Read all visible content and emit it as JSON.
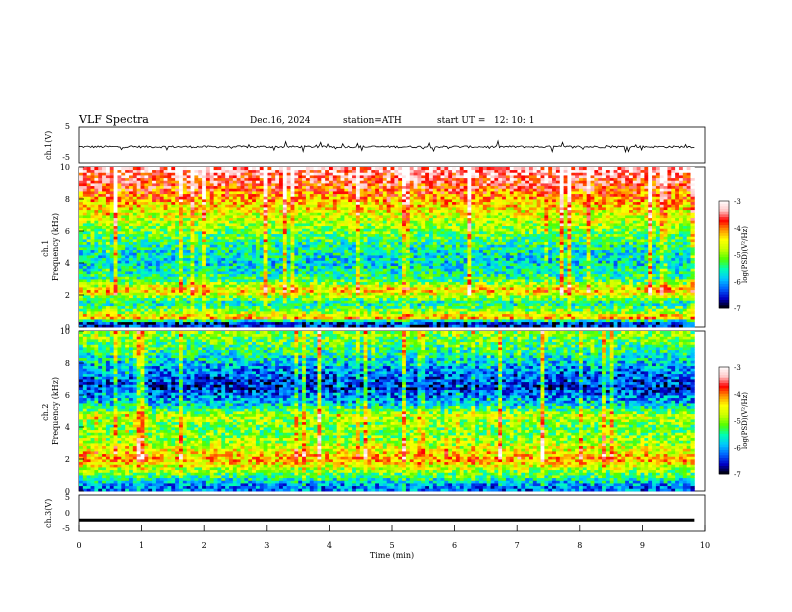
{
  "header": {
    "title": "VLF  Spectra",
    "date": "Dec.16, 2024",
    "station": "station=ATH",
    "start_label": "start  UT  =",
    "start_time": "12: 10: 1"
  },
  "chart_data": [
    {
      "type": "line",
      "panel": "ch1-waveform",
      "ylabel": "ch.1(V)",
      "ylim": [
        -5,
        5
      ],
      "yticks": [
        "5",
        "-5"
      ],
      "xlim": [
        0,
        10
      ],
      "description_of_series": "noisy waveform near -0.5 V with spikes between about -1.5 and +1.5 V",
      "typical_value": -0.5
    },
    {
      "type": "heatmap",
      "panel": "ch1-spectrogram",
      "ylabel": "ch.1\nFrequency  (kHz)",
      "ylabel_line1": "ch.1",
      "ylabel_line2": "Frequency  (kHz)",
      "ylim": [
        0,
        10
      ],
      "yticks": [
        "0",
        "2",
        "4",
        "6",
        "8",
        "10"
      ],
      "xlim": [
        0,
        9.83
      ],
      "colorbar": {
        "label": "log(PSD)(V²/Hz)",
        "range": [
          -7,
          -3
        ],
        "ticks": [
          "-3",
          "-4",
          "-5",
          "-6",
          "-7"
        ]
      },
      "power_profile": [
        {
          "f_khz": 0.3,
          "logpsd": -6.5
        },
        {
          "f_khz": 0.6,
          "logpsd": -4.2
        },
        {
          "f_khz": 1.0,
          "logpsd": -5.0
        },
        {
          "f_khz": 1.5,
          "logpsd": -5.7
        },
        {
          "f_khz": 2.0,
          "logpsd": -4.8
        },
        {
          "f_khz": 2.3,
          "logpsd": -4.3
        },
        {
          "f_khz": 3.0,
          "logpsd": -5.4
        },
        {
          "f_khz": 4.0,
          "logpsd": -5.8
        },
        {
          "f_khz": 5.0,
          "logpsd": -5.6
        },
        {
          "f_khz": 6.0,
          "logpsd": -5.1
        },
        {
          "f_khz": 7.0,
          "logpsd": -4.7
        },
        {
          "f_khz": 8.0,
          "logpsd": -4.2
        },
        {
          "f_khz": 9.0,
          "logpsd": -3.7
        },
        {
          "f_khz": 10.0,
          "logpsd": -3.3
        }
      ]
    },
    {
      "type": "heatmap",
      "panel": "ch2-spectrogram",
      "ylabel": "ch.2\nFrequency  (kHz)",
      "ylabel_line1": "ch.2",
      "ylabel_line2": "Frequency  (kHz)",
      "ylim": [
        0,
        10
      ],
      "yticks": [
        "0",
        "2",
        "4",
        "6",
        "8",
        "10"
      ],
      "xlim": [
        0,
        9.83
      ],
      "colorbar": {
        "label": "log(PSD)(V²/Hz)",
        "range": [
          -7,
          -3
        ],
        "ticks": [
          "-3",
          "-4",
          "-5",
          "-6",
          "-7"
        ]
      },
      "power_profile": [
        {
          "f_khz": 0.3,
          "logpsd": -6.2
        },
        {
          "f_khz": 1.0,
          "logpsd": -5.3
        },
        {
          "f_khz": 2.0,
          "logpsd": -4.2
        },
        {
          "f_khz": 3.0,
          "logpsd": -4.9
        },
        {
          "f_khz": 4.0,
          "logpsd": -5.2
        },
        {
          "f_khz": 4.7,
          "logpsd": -4.8
        },
        {
          "f_khz": 5.5,
          "logpsd": -5.9
        },
        {
          "f_khz": 6.5,
          "logpsd": -6.5
        },
        {
          "f_khz": 7.5,
          "logpsd": -6.2
        },
        {
          "f_khz": 8.5,
          "logpsd": -5.6
        },
        {
          "f_khz": 10.0,
          "logpsd": -5.0
        }
      ]
    },
    {
      "type": "line",
      "panel": "ch3-waveform",
      "ylabel": "ch.3(V)",
      "ylim": [
        -5,
        5
      ],
      "yticks": [
        "5",
        "0",
        "-5"
      ],
      "xlim": [
        0,
        10
      ],
      "typical_value": -2.0,
      "xlabel": "Time  (min)",
      "xticks": [
        "0",
        "1",
        "2",
        "3",
        "4",
        "5",
        "6",
        "7",
        "8",
        "9",
        "10"
      ]
    }
  ],
  "colors": {
    "colormap": [
      "#000000",
      "#0000c8",
      "#0064ff",
      "#00c8ff",
      "#00ffb4",
      "#50ff00",
      "#c8ff00",
      "#ffff00",
      "#ff9600",
      "#ff0000",
      "#ffc8c8",
      "#ffffff"
    ]
  }
}
